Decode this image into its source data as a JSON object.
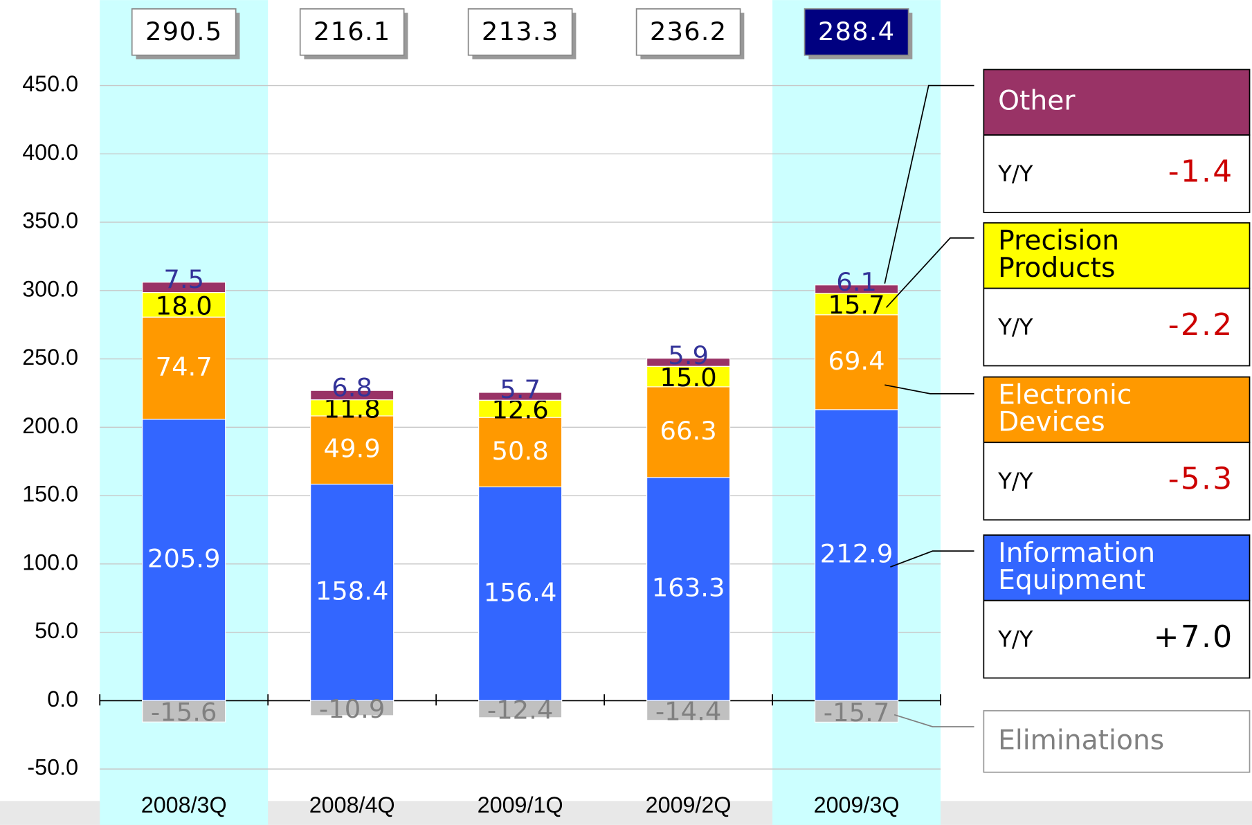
{
  "chart_data": {
    "type": "stacked-bar",
    "categories": [
      "2008/3Q",
      "2008/4Q",
      "2009/1Q",
      "2009/2Q",
      "2009/3Q"
    ],
    "highlight": [
      true,
      false,
      false,
      false,
      true
    ],
    "highlight_color": "#ccffff",
    "totals": [
      290.5,
      216.1,
      213.3,
      236.2,
      288.4
    ],
    "series": [
      {
        "name": "Information Equipment",
        "color": "#3366ff",
        "values": [
          205.9,
          158.4,
          156.4,
          163.3,
          212.9
        ],
        "value_labels": [
          "205.9",
          "158.4",
          "156.4",
          "163.3",
          "212.9"
        ],
        "yoy_title": "Y/Y",
        "yoy": 7.0,
        "yoy_label": "+7.0"
      },
      {
        "name": "Electronic Devices",
        "color": "#ff9900",
        "values": [
          74.7,
          49.9,
          50.8,
          66.3,
          69.4
        ],
        "value_labels": [
          "74.7",
          "49.9",
          "50.8",
          "66.3",
          "69.4"
        ],
        "yoy_title": "Y/Y",
        "yoy": -5.3,
        "yoy_label": "-5.3"
      },
      {
        "name": "Precision Products",
        "color": "#ffff00",
        "values": [
          18.0,
          11.8,
          12.6,
          15.0,
          15.7
        ],
        "value_labels": [
          "18.0",
          "11.8",
          "12.6",
          "15.0",
          "15.7"
        ],
        "yoy_title": "Y/Y",
        "yoy": -2.2,
        "yoy_label": "-2.2"
      },
      {
        "name": "Other",
        "color": "#993366",
        "values": [
          7.5,
          6.8,
          5.7,
          5.9,
          6.1
        ],
        "value_labels": [
          "7.5",
          "6.8",
          "5.7",
          "5.9",
          "6.1"
        ],
        "yoy_title": "Y/Y",
        "yoy": -1.4,
        "yoy_label": "-1.4"
      },
      {
        "name": "Eliminations",
        "color": "#c0c0c0",
        "values": [
          -15.6,
          -10.9,
          -12.4,
          -14.4,
          -15.7
        ],
        "value_labels": [
          "-15.6",
          "-10.9",
          "-12.4",
          "-14.4",
          "-15.7"
        ]
      }
    ],
    "ylim": [
      -50,
      450
    ],
    "yticks": [
      {
        "value": -50,
        "label": "-50.0"
      },
      {
        "value": 0,
        "label": "0.0"
      },
      {
        "value": 50,
        "label": "50.0"
      },
      {
        "value": 100,
        "label": "100.0"
      },
      {
        "value": 150,
        "label": "150.0"
      },
      {
        "value": 200,
        "label": "200.0"
      },
      {
        "value": 250,
        "label": "250.0"
      },
      {
        "value": 300,
        "label": "300.0"
      },
      {
        "value": 350,
        "label": "350.0"
      },
      {
        "value": 400,
        "label": "400.0"
      },
      {
        "value": 450,
        "label": "450.0"
      }
    ],
    "grid": true
  }
}
